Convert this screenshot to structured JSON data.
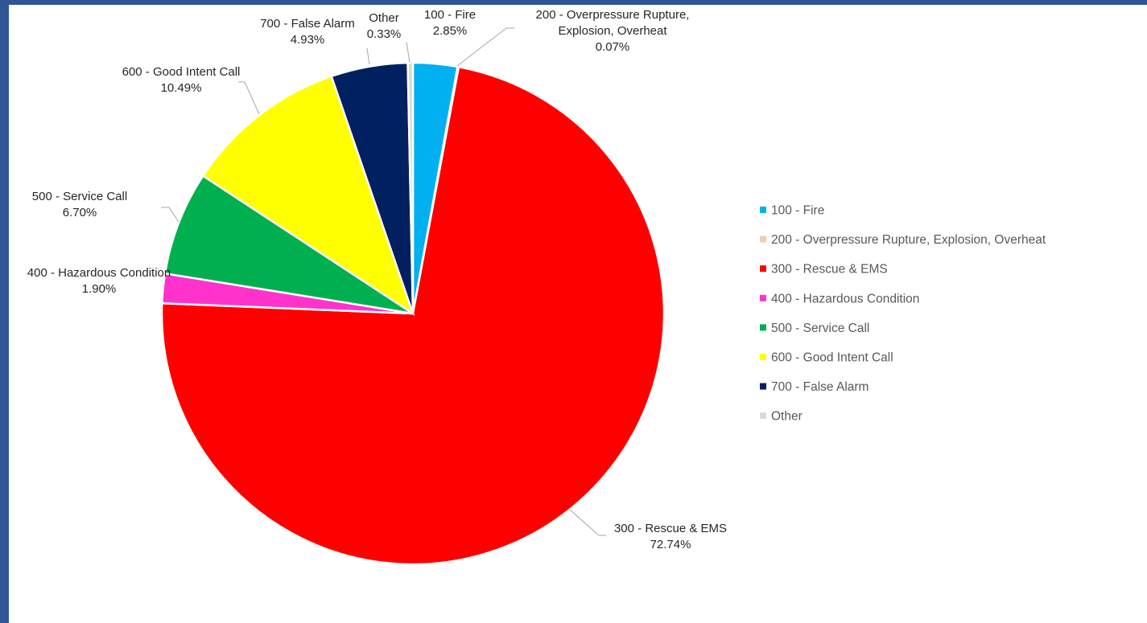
{
  "chart_data": {
    "type": "pie",
    "title": "",
    "legend_position": "right",
    "slices": [
      {
        "name": "100 - Fire",
        "value": 2.85,
        "label": "2.85%",
        "color": "#00b0f0"
      },
      {
        "name": "200 - Overpressure Rupture, Explosion, Overheat",
        "value": 0.07,
        "label": "0.07%",
        "color": "#f8cbad"
      },
      {
        "name": "300 - Rescue & EMS",
        "value": 72.74,
        "label": "72.74%",
        "color": "#ff0000"
      },
      {
        "name": "400 - Hazardous Condition",
        "value": 1.9,
        "label": "1.90%",
        "color": "#ff33cc"
      },
      {
        "name": "500 - Service Call",
        "value": 6.7,
        "label": "6.70%",
        "color": "#00b050"
      },
      {
        "name": "600 - Good Intent Call",
        "value": 10.49,
        "label": "10.49%",
        "color": "#ffff00"
      },
      {
        "name": "700 - False Alarm",
        "value": 4.93,
        "label": "4.93%",
        "color": "#002060"
      },
      {
        "name": "Other",
        "value": 0.33,
        "label": "0.33%",
        "color": "#d9d9d9"
      }
    ]
  }
}
